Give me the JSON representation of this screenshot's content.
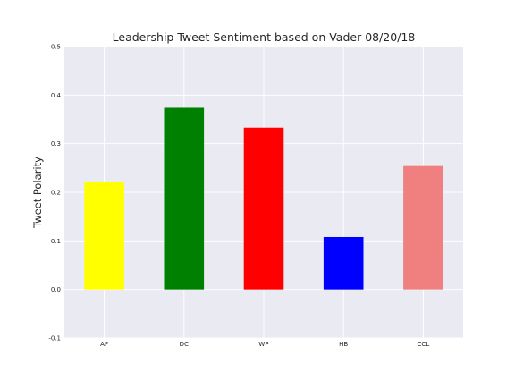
{
  "chart_data": {
    "type": "bar",
    "title": "Leadership Tweet Sentiment based on Vader  08/20/18",
    "xlabel": "",
    "ylabel": "Tweet Polarity",
    "categories": [
      "AF",
      "DC",
      "WP",
      "HB",
      "CCL"
    ],
    "values": [
      0.222,
      0.374,
      0.333,
      0.108,
      0.254
    ],
    "colors": [
      "#ffff00",
      "#008000",
      "#ff0000",
      "#0000ff",
      "#f08080"
    ],
    "ylim": [
      -0.1,
      0.5
    ],
    "yticks": [
      "-0.1",
      "0.0",
      "0.1",
      "0.2",
      "0.3",
      "0.4",
      "0.5"
    ],
    "grid": true,
    "legend": "none",
    "background_color": "#eaeaf2"
  }
}
